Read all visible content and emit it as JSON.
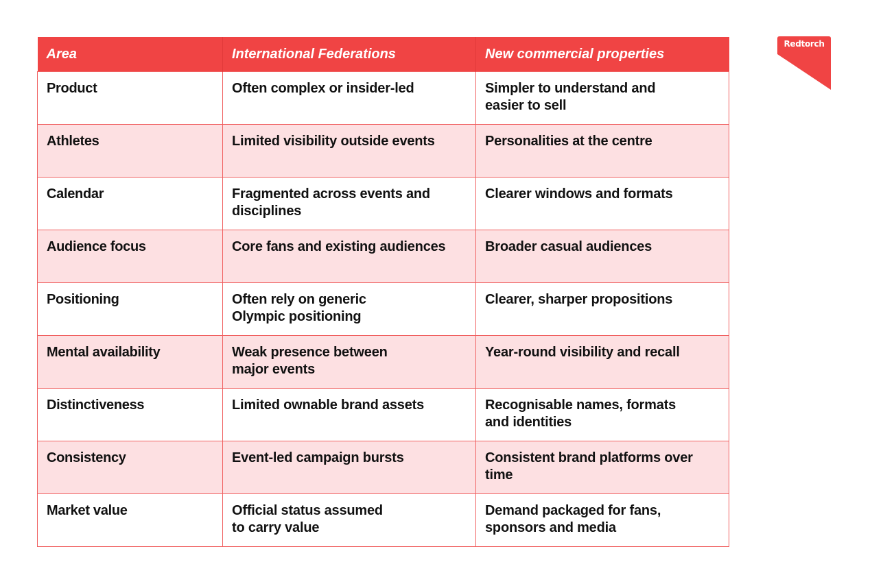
{
  "brand": {
    "logo_text": "Redtorch",
    "accent": "#f04444",
    "row_tint": "#fde0e2"
  },
  "table": {
    "headers": [
      "Area",
      "International Federations",
      "New commercial properties"
    ],
    "rows": [
      [
        "Product",
        "Often complex or insider-led",
        "Simpler to understand and\neasier to sell"
      ],
      [
        "Athletes",
        "Limited visibility outside events",
        "Personalities at the centre"
      ],
      [
        "Calendar",
        "Fragmented across events and\ndisciplines",
        "Clearer windows and formats"
      ],
      [
        "Audience focus",
        "Core fans and existing audiences",
        "Broader casual audiences"
      ],
      [
        "Positioning",
        "Often rely on generic\nOlympic positioning",
        "Clearer, sharper propositions"
      ],
      [
        "Mental availability",
        "Weak presence between\nmajor events",
        "Year-round visibility and recall"
      ],
      [
        "Distinctiveness",
        "Limited ownable brand assets",
        "Recognisable names, formats\nand identities"
      ],
      [
        "Consistency",
        "Event-led campaign bursts",
        "Consistent brand platforms over time"
      ],
      [
        "Market value",
        "Official status assumed\nto carry value",
        "Demand packaged for fans,\nsponsors and media"
      ]
    ]
  }
}
